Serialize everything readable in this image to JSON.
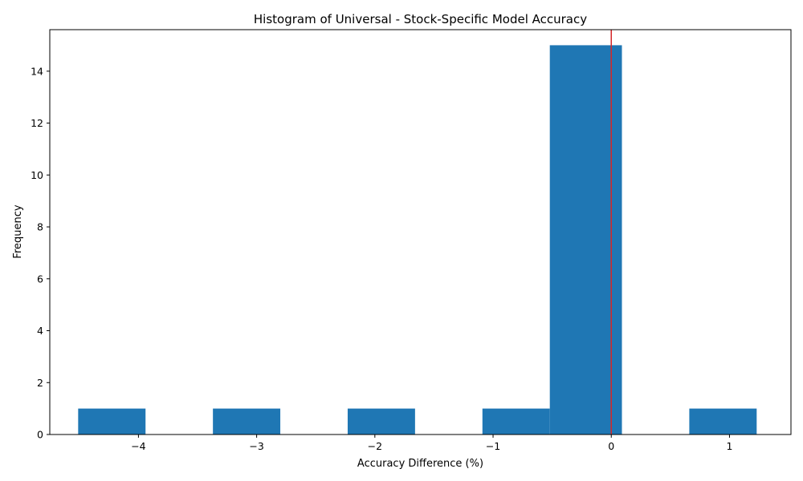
{
  "chart_data": {
    "type": "bar",
    "title": "Histogram of Universal - Stock-Specific Model Accuracy",
    "xlabel": "Accuracy Difference (%)",
    "ylabel": "Frequency",
    "xlim": [
      -4.75,
      1.52
    ],
    "ylim": [
      0,
      15.6
    ],
    "bins": [
      {
        "left": -4.51,
        "right": -3.94,
        "count": 1
      },
      {
        "left": -3.94,
        "right": -3.37,
        "count": 0
      },
      {
        "left": -3.37,
        "right": -2.8,
        "count": 1
      },
      {
        "left": -2.8,
        "right": -2.23,
        "count": 0
      },
      {
        "left": -2.23,
        "right": -1.66,
        "count": 1
      },
      {
        "left": -1.66,
        "right": -1.09,
        "count": 0
      },
      {
        "left": -1.09,
        "right": -0.52,
        "count": 1
      },
      {
        "left": -0.52,
        "right": 0.09,
        "count": 15
      },
      {
        "left": 0.09,
        "right": 0.66,
        "count": 0
      },
      {
        "left": 0.66,
        "right": 1.23,
        "count": 1
      }
    ],
    "vline": {
      "x": 0,
      "color": "#d62728"
    },
    "bar_color": "#1f77b4",
    "xticks": [
      {
        "value": -4,
        "label": "−4"
      },
      {
        "value": -3,
        "label": "−3"
      },
      {
        "value": -2,
        "label": "−2"
      },
      {
        "value": -1,
        "label": "−1"
      },
      {
        "value": 0,
        "label": "0"
      },
      {
        "value": 1,
        "label": "1"
      }
    ],
    "yticks": [
      {
        "value": 0,
        "label": "0"
      },
      {
        "value": 2,
        "label": "2"
      },
      {
        "value": 4,
        "label": "4"
      },
      {
        "value": 6,
        "label": "6"
      },
      {
        "value": 8,
        "label": "8"
      },
      {
        "value": 10,
        "label": "10"
      },
      {
        "value": 12,
        "label": "12"
      },
      {
        "value": 14,
        "label": "14"
      }
    ],
    "grid": false,
    "legend": "none"
  }
}
